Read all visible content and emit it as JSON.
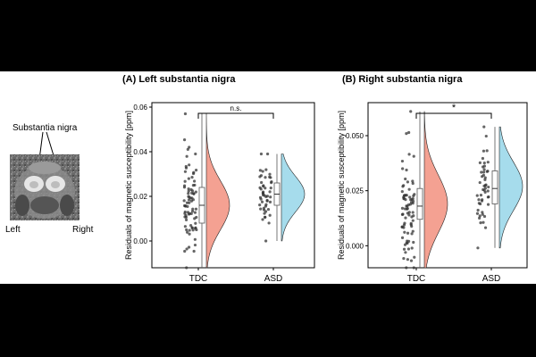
{
  "brain": {
    "label": "Substantia nigra",
    "left": "Left",
    "right": "Right"
  },
  "chart_data": [
    {
      "type": "raincloud",
      "title": "(A) Left substantia nigra",
      "ylabel": "Residuals of magnetic susceptibility [ppm]",
      "categories": [
        "TDC",
        "ASD"
      ],
      "ylim": [
        -0.012,
        0.062
      ],
      "yticks": [
        "0.00",
        "0.02",
        "0.04",
        "0.06"
      ],
      "ytick_values": [
        0.0,
        0.02,
        0.04,
        0.06
      ],
      "significance": "n.s.",
      "groups": [
        {
          "name": "TDC",
          "color": "#f4a192",
          "min": -0.012,
          "q1": 0.008,
          "median": 0.016,
          "q3": 0.024,
          "max": 0.057,
          "mean": 0.016,
          "sd": 0.011,
          "n": 80,
          "seed": 11
        },
        {
          "name": "ASD",
          "color": "#a6dcec",
          "min": 0.0,
          "q1": 0.016,
          "median": 0.021,
          "q3": 0.026,
          "max": 0.039,
          "mean": 0.021,
          "sd": 0.008,
          "n": 50,
          "seed": 23
        }
      ]
    },
    {
      "type": "raincloud",
      "title": "(B) Right substantia nigra",
      "ylabel": "Residuals of magnetic susceptibility [ppm]",
      "categories": [
        "TDC",
        "ASD"
      ],
      "ylim": [
        -0.01,
        0.065
      ],
      "yticks": [
        "0.000",
        "0.025",
        "0.050"
      ],
      "ytick_values": [
        0.0,
        0.025,
        0.05
      ],
      "significance": "*",
      "groups": [
        {
          "name": "TDC",
          "color": "#f4a192",
          "min": -0.01,
          "q1": 0.012,
          "median": 0.018,
          "q3": 0.026,
          "max": 0.061,
          "mean": 0.019,
          "sd": 0.013,
          "n": 80,
          "seed": 37
        },
        {
          "name": "ASD",
          "color": "#a6dcec",
          "min": -0.001,
          "q1": 0.019,
          "median": 0.026,
          "q3": 0.034,
          "max": 0.054,
          "mean": 0.027,
          "sd": 0.011,
          "n": 50,
          "seed": 41
        }
      ]
    }
  ]
}
